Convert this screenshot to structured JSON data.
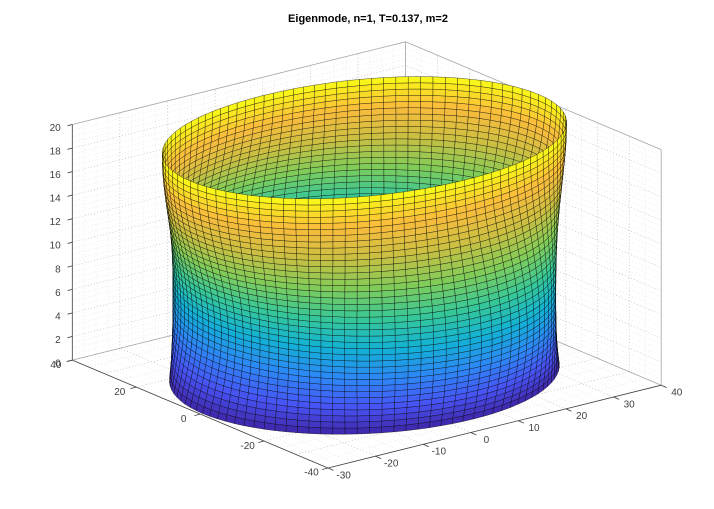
{
  "chart_data": {
    "type": "surface",
    "title": "Eigenmode, n=1, T=0.137, m=2",
    "parameters": {
      "n": 1,
      "T": 0.137,
      "m": 2
    },
    "axes": {
      "x": {
        "lim": [
          -30,
          40
        ],
        "ticks": [
          -30,
          -20,
          -10,
          0,
          10,
          20,
          30,
          40
        ],
        "grid_step": 10,
        "minor_step": 2.5
      },
      "y": {
        "lim": [
          -40,
          40
        ],
        "ticks": [
          40,
          20,
          0,
          -20,
          -40
        ],
        "grid_step": 10,
        "minor_step": 5
      },
      "z": {
        "lim": [
          0,
          20
        ],
        "ticks": [
          0,
          2,
          4,
          6,
          8,
          10,
          12,
          14,
          16,
          18,
          20
        ],
        "grid_step": 2,
        "minor_step": 0.5
      }
    },
    "view": {
      "azimuth": -37.5,
      "elevation": 30
    },
    "surface": {
      "shape": "cylindrical_shell_eigenmode",
      "radius": 34,
      "center_x": 4.5,
      "center_y": 0,
      "height": 20,
      "amplitude": 2.6,
      "circumferential_waves": 2,
      "axial_halfwaves": 1.5,
      "mesh_theta": 100,
      "mesh_z": 38
    },
    "colormap": {
      "name": "parula",
      "stops": [
        [
          0.0,
          62,
          38,
          168
        ],
        [
          0.111,
          72,
          82,
          244
        ],
        [
          0.238,
          46,
          135,
          247
        ],
        [
          0.365,
          18,
          177,
          214
        ],
        [
          0.492,
          55,
          200,
          151
        ],
        [
          0.619,
          129,
          204,
          89
        ],
        [
          0.746,
          202,
          191,
          65
        ],
        [
          0.873,
          251,
          188,
          60
        ],
        [
          1.0,
          249,
          251,
          21
        ]
      ]
    },
    "style": {
      "background": "#ffffff",
      "grid_major": "#ababab",
      "grid_minor": "#d4d4d4",
      "box_edge": "#a8a8a8",
      "axis_edge": "#3f3f3f",
      "tick_label": "#3f3f3f",
      "title_color": "#000000",
      "mesh_edge": "#000000",
      "mesh_edge_opacity": 0.75
    }
  }
}
